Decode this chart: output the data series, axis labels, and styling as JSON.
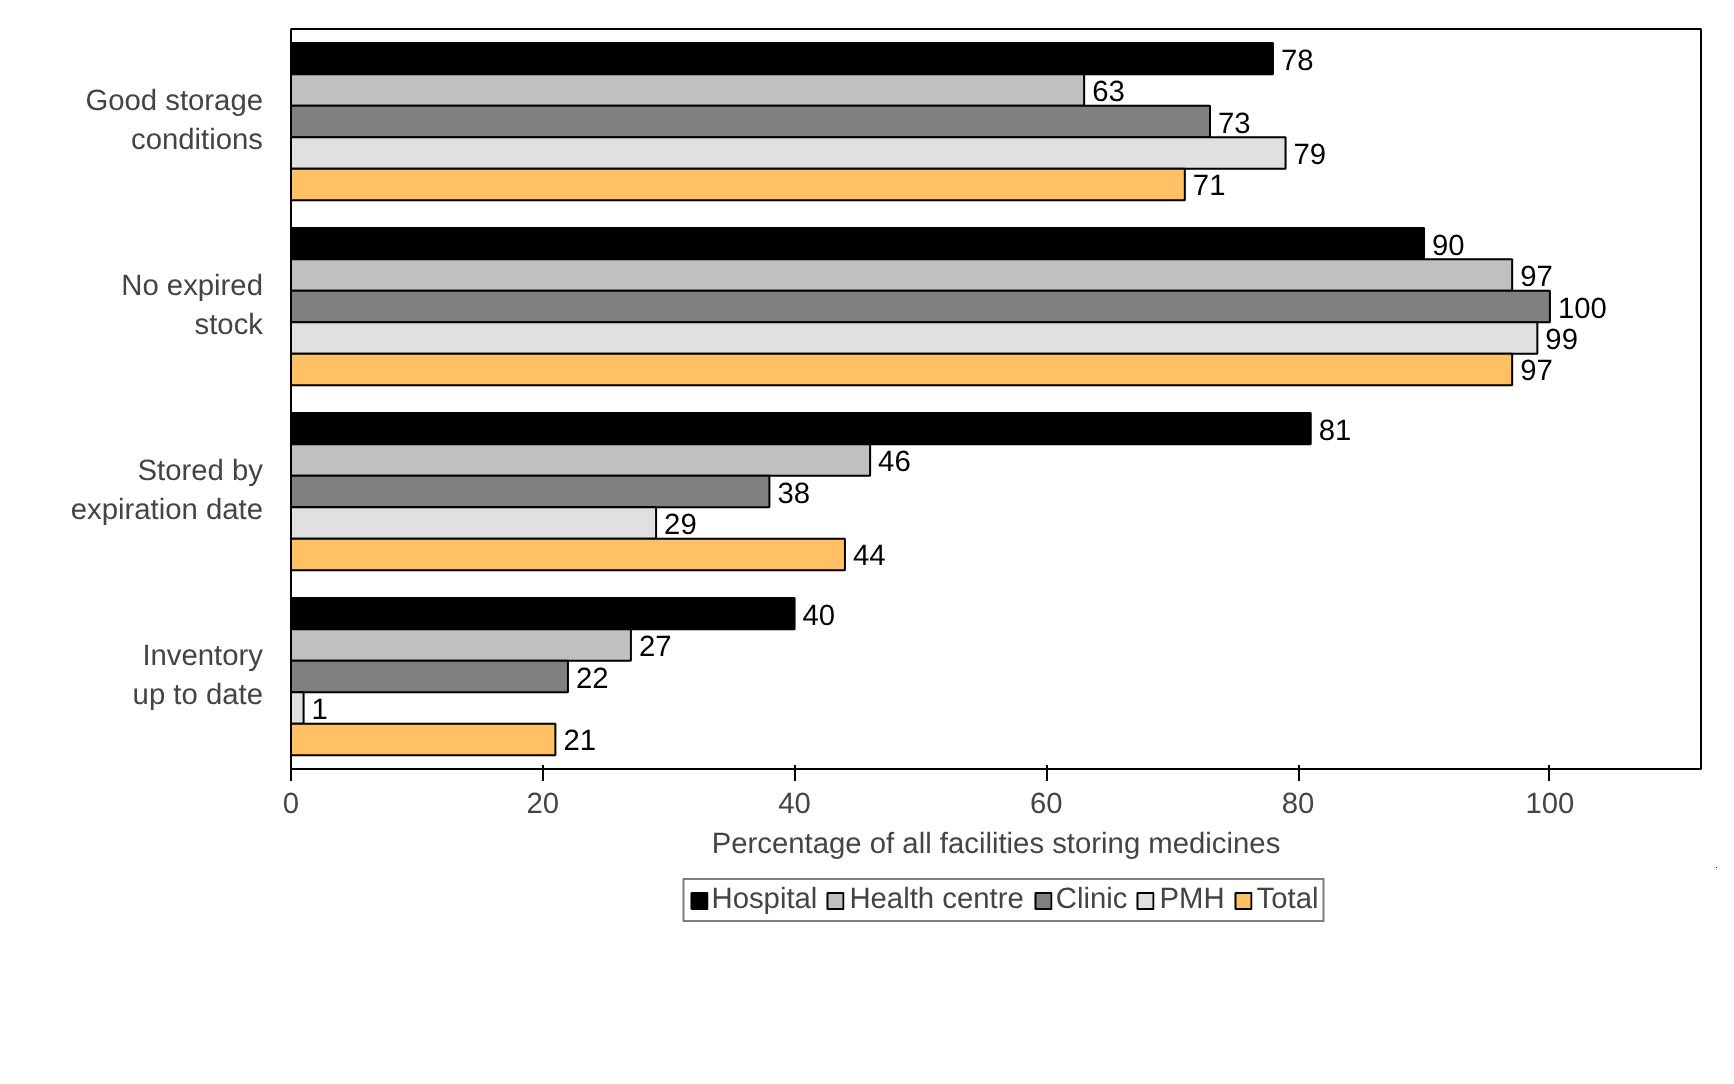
{
  "chart_data": {
    "type": "bar",
    "orientation": "horizontal",
    "xlabel": "Percentage of all facilities storing medicines",
    "categories": [
      "Good storage\nconditions",
      "No expired\nstock",
      "Stored by\nexpiration date",
      "Inventory\nup to date"
    ],
    "series": [
      {
        "name": "Hospital",
        "color": "#000000",
        "values": [
          78,
          90,
          81,
          40
        ]
      },
      {
        "name": "Health centre",
        "color": "#c0c0c0",
        "values": [
          63,
          97,
          46,
          27
        ]
      },
      {
        "name": "Clinic",
        "color": "#808080",
        "values": [
          73,
          100,
          38,
          22
        ]
      },
      {
        "name": "PMH",
        "color": "#e0e0e0",
        "values": [
          79,
          99,
          29,
          1
        ]
      },
      {
        "name": "Total",
        "color": "#ffc066",
        "values": [
          71,
          97,
          44,
          21
        ]
      }
    ],
    "xlim": [
      0,
      112
    ],
    "xticks": [
      0,
      20,
      40,
      60,
      80,
      100
    ],
    "data_labels": true,
    "grid": false,
    "legend": "bottom"
  }
}
